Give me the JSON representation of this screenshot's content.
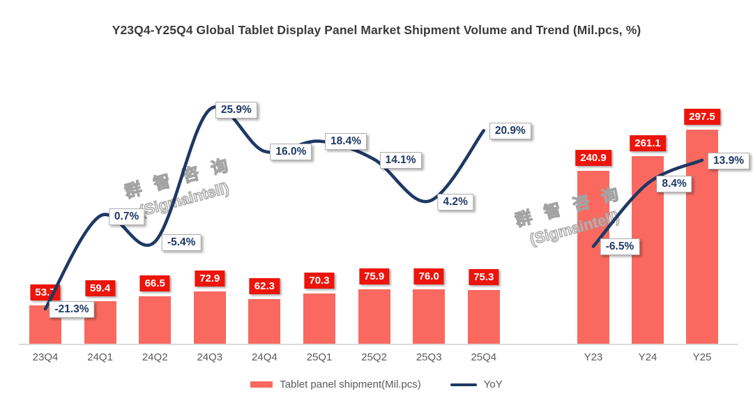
{
  "title": "Y23Q4-Y25Q4 Global Tablet Display Panel Market Shipment Volume and Trend (Mil.pcs, %)",
  "watermark": {
    "line1": "群 智 咨 询",
    "line2": "(Sigmaintell)"
  },
  "legend": {
    "bars": "Tablet panel shipment(Mil.pcs)",
    "line": "YoY"
  },
  "colors": {
    "bar": "#F9695F",
    "bar_label_bg": "#ED140B",
    "bar_label_text": "#FFFFFF",
    "line": "#1F3864",
    "yoy_label_text": "#1F3864",
    "yoy_label_border": "#ABABAB",
    "yoy_label_bg": "#FFFFFF",
    "axis": "#D9D9D9",
    "tick_text": "#595959",
    "title_text": "#3B3B3B"
  },
  "chart_data": {
    "type": "combo bar+line",
    "title": "Y23Q4-Y25Q4 Global Tablet Display Panel Market Shipment Volume and Trend (Mil.pcs, %)",
    "legend_position": "bottom",
    "grid": false,
    "value_axes_visible": false,
    "groups": [
      {
        "name": "quarterly",
        "categories": [
          "23Q4",
          "24Q1",
          "24Q2",
          "24Q3",
          "24Q4",
          "25Q1",
          "25Q2",
          "25Q3",
          "25Q4"
        ],
        "series": [
          {
            "name": "Tablet panel shipment(Mil.pcs)",
            "type": "bar",
            "values": [
              53.7,
              59.4,
              66.5,
              72.9,
              62.3,
              70.3,
              75.9,
              76.0,
              75.3
            ],
            "labels": [
              "53.7",
              "59.4",
              "66.5",
              "72.9",
              "62.3",
              "70.3",
              "75.9",
              "76.0",
              "75.3"
            ]
          },
          {
            "name": "YoY",
            "type": "line",
            "unit": "%",
            "values": [
              -21.3,
              0.7,
              -5.4,
              25.9,
              16.0,
              18.4,
              14.1,
              4.2,
              20.9
            ],
            "labels": [
              "-21.3%",
              "0.7%",
              "-5.4%",
              "25.9%",
              "16.0%",
              "18.4%",
              "14.1%",
              "4.2%",
              "20.9%"
            ]
          }
        ]
      },
      {
        "name": "yearly",
        "categories": [
          "Y23",
          "Y24",
          "Y25"
        ],
        "series": [
          {
            "name": "Tablet panel shipment(Mil.pcs)",
            "type": "bar",
            "values": [
              240.9,
              261.1,
              297.5
            ],
            "labels": [
              "240.9",
              "261.1",
              "297.5"
            ]
          },
          {
            "name": "YoY",
            "type": "line",
            "unit": "%",
            "values": [
              -6.5,
              8.4,
              13.9
            ],
            "labels": [
              "-6.5%",
              "8.4%",
              "13.9%"
            ]
          }
        ]
      }
    ]
  }
}
